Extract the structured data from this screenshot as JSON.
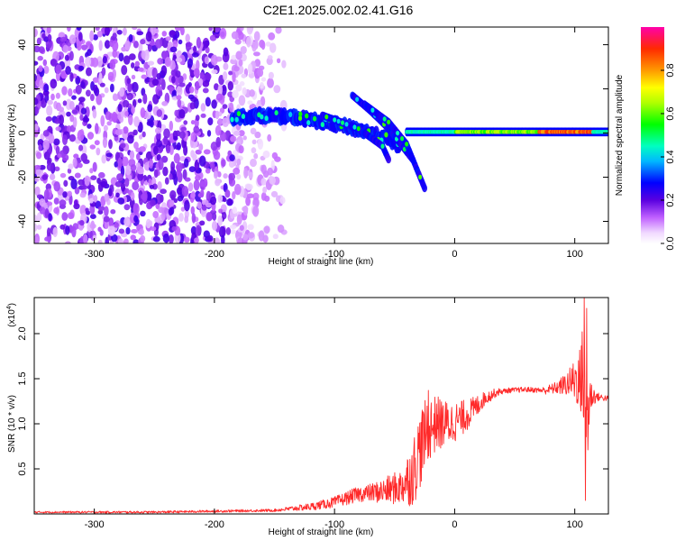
{
  "title": "C2E1.2025.002.02.41.G16",
  "chart_data": [
    {
      "type": "heatmap",
      "name": "spectrogram",
      "xlabel": "Height of straight line (km)",
      "ylabel": "Frequency (Hz)",
      "xlim": [
        -350,
        128
      ],
      "ylim": [
        -50,
        48
      ],
      "x_ticks": [
        -300,
        -200,
        -100,
        0,
        100
      ],
      "x_tick_labels": [
        "-300",
        "-200",
        "-100",
        "0",
        "100"
      ],
      "y_ticks": [
        -40,
        -20,
        0,
        20,
        40
      ],
      "y_tick_labels": [
        "-40",
        "-20",
        "0",
        "20",
        "40"
      ],
      "colorbar": {
        "label": "Normalized spectral amplitude",
        "range": [
          0,
          1
        ],
        "ticks": [
          0.0,
          0.2,
          0.4,
          0.6,
          0.8
        ],
        "tick_labels": [
          "0.0",
          "0.2",
          "0.4",
          "0.6",
          "0.8"
        ]
      },
      "features": {
        "noise_region": {
          "x_range": [
            -350,
            -140
          ],
          "freq_range": [
            -50,
            48
          ],
          "note": "scattered purple speckle, dense below -180 km"
        },
        "main_track": [
          {
            "x": -185,
            "freq": 7
          },
          {
            "x": -160,
            "freq": 8
          },
          {
            "x": -130,
            "freq": 7
          },
          {
            "x": -110,
            "freq": 5
          },
          {
            "x": -90,
            "freq": 3
          },
          {
            "x": -70,
            "freq": 0
          },
          {
            "x": -55,
            "freq": -3
          },
          {
            "x": -45,
            "freq": -6
          }
        ],
        "descending_tracks": [
          [
            {
              "x": -85,
              "freq": 17
            },
            {
              "x": -70,
              "freq": 10
            },
            {
              "x": -55,
              "freq": 2
            },
            {
              "x": -45,
              "freq": -5
            },
            {
              "x": -35,
              "freq": -12
            }
          ],
          [
            {
              "x": -75,
              "freq": 13
            },
            {
              "x": -55,
              "freq": 5
            },
            {
              "x": -40,
              "freq": -5
            },
            {
              "x": -25,
              "freq": -25
            }
          ],
          [
            {
              "x": -110,
              "freq": 8
            },
            {
              "x": -80,
              "freq": 2
            },
            {
              "x": -60,
              "freq": -6
            },
            {
              "x": -55,
              "freq": -12
            }
          ]
        ],
        "stable_tone": {
          "x_range": [
            -40,
            128
          ],
          "freq": 0.5,
          "peak_amplitude_x": [
            70,
            115
          ]
        }
      }
    },
    {
      "type": "line",
      "name": "snr",
      "xlabel": "Height of straight line (km)",
      "ylabel": "SNR (10 * v/v)",
      "scale_label": "(x10",
      "scale_exponent": "4",
      "xlim": [
        -350,
        128
      ],
      "ylim": [
        0,
        2.4
      ],
      "x_ticks": [
        -300,
        -200,
        -100,
        0,
        100
      ],
      "x_tick_labels": [
        "-300",
        "-200",
        "-100",
        "0",
        "100"
      ],
      "y_ticks": [
        0.5,
        1.0,
        1.5,
        2.0
      ],
      "y_tick_labels": [
        "0.5",
        "1.0",
        "1.5",
        "2.0"
      ],
      "color": "#ff2a2a",
      "series": [
        {
          "points": [
            [
              -350,
              0.02
            ],
            [
              -300,
              0.02
            ],
            [
              -250,
              0.02
            ],
            [
              -200,
              0.03
            ],
            [
              -150,
              0.04
            ],
            [
              -120,
              0.08
            ],
            [
              -100,
              0.13
            ],
            [
              -80,
              0.22
            ],
            [
              -60,
              0.25
            ],
            [
              -45,
              0.3
            ],
            [
              -35,
              0.45
            ],
            [
              -28,
              0.75
            ],
            [
              -22,
              0.95
            ],
            [
              -15,
              1.0
            ],
            [
              -5,
              1.0
            ],
            [
              5,
              1.05
            ],
            [
              15,
              1.15
            ],
            [
              25,
              1.28
            ],
            [
              35,
              1.35
            ],
            [
              45,
              1.37
            ],
            [
              60,
              1.38
            ],
            [
              75,
              1.37
            ],
            [
              85,
              1.4
            ],
            [
              95,
              1.45
            ],
            [
              102,
              1.5
            ],
            [
              107,
              1.4
            ],
            [
              110,
              1.0
            ],
            [
              113,
              1.32
            ],
            [
              118,
              1.3
            ],
            [
              128,
              1.28
            ]
          ],
          "noise_amplitude": [
            [
              -350,
              0.01
            ],
            [
              -150,
              0.015
            ],
            [
              -110,
              0.05
            ],
            [
              -70,
              0.1
            ],
            [
              -45,
              0.2
            ],
            [
              -30,
              0.45
            ],
            [
              -20,
              0.35
            ],
            [
              -5,
              0.25
            ],
            [
              10,
              0.18
            ],
            [
              25,
              0.08
            ],
            [
              40,
              0.03
            ],
            [
              70,
              0.03
            ],
            [
              85,
              0.07
            ],
            [
              95,
              0.15
            ],
            [
              102,
              0.3
            ],
            [
              106,
              0.5
            ],
            [
              110,
              0.7
            ],
            [
              113,
              0.2
            ],
            [
              118,
              0.05
            ],
            [
              128,
              0.03
            ]
          ],
          "spikes": [
            {
              "x": -22,
              "y": 1.37
            },
            {
              "x": -15,
              "y": 1.22
            },
            {
              "x": -8,
              "y": 1.1
            },
            {
              "x": 103,
              "y": 1.7
            },
            {
              "x": 106,
              "y": 2.02
            },
            {
              "x": 108,
              "y": 2.4
            },
            {
              "x": 110,
              "y": 2.28
            },
            {
              "x": 109,
              "y": 0.15
            }
          ]
        }
      ]
    }
  ]
}
